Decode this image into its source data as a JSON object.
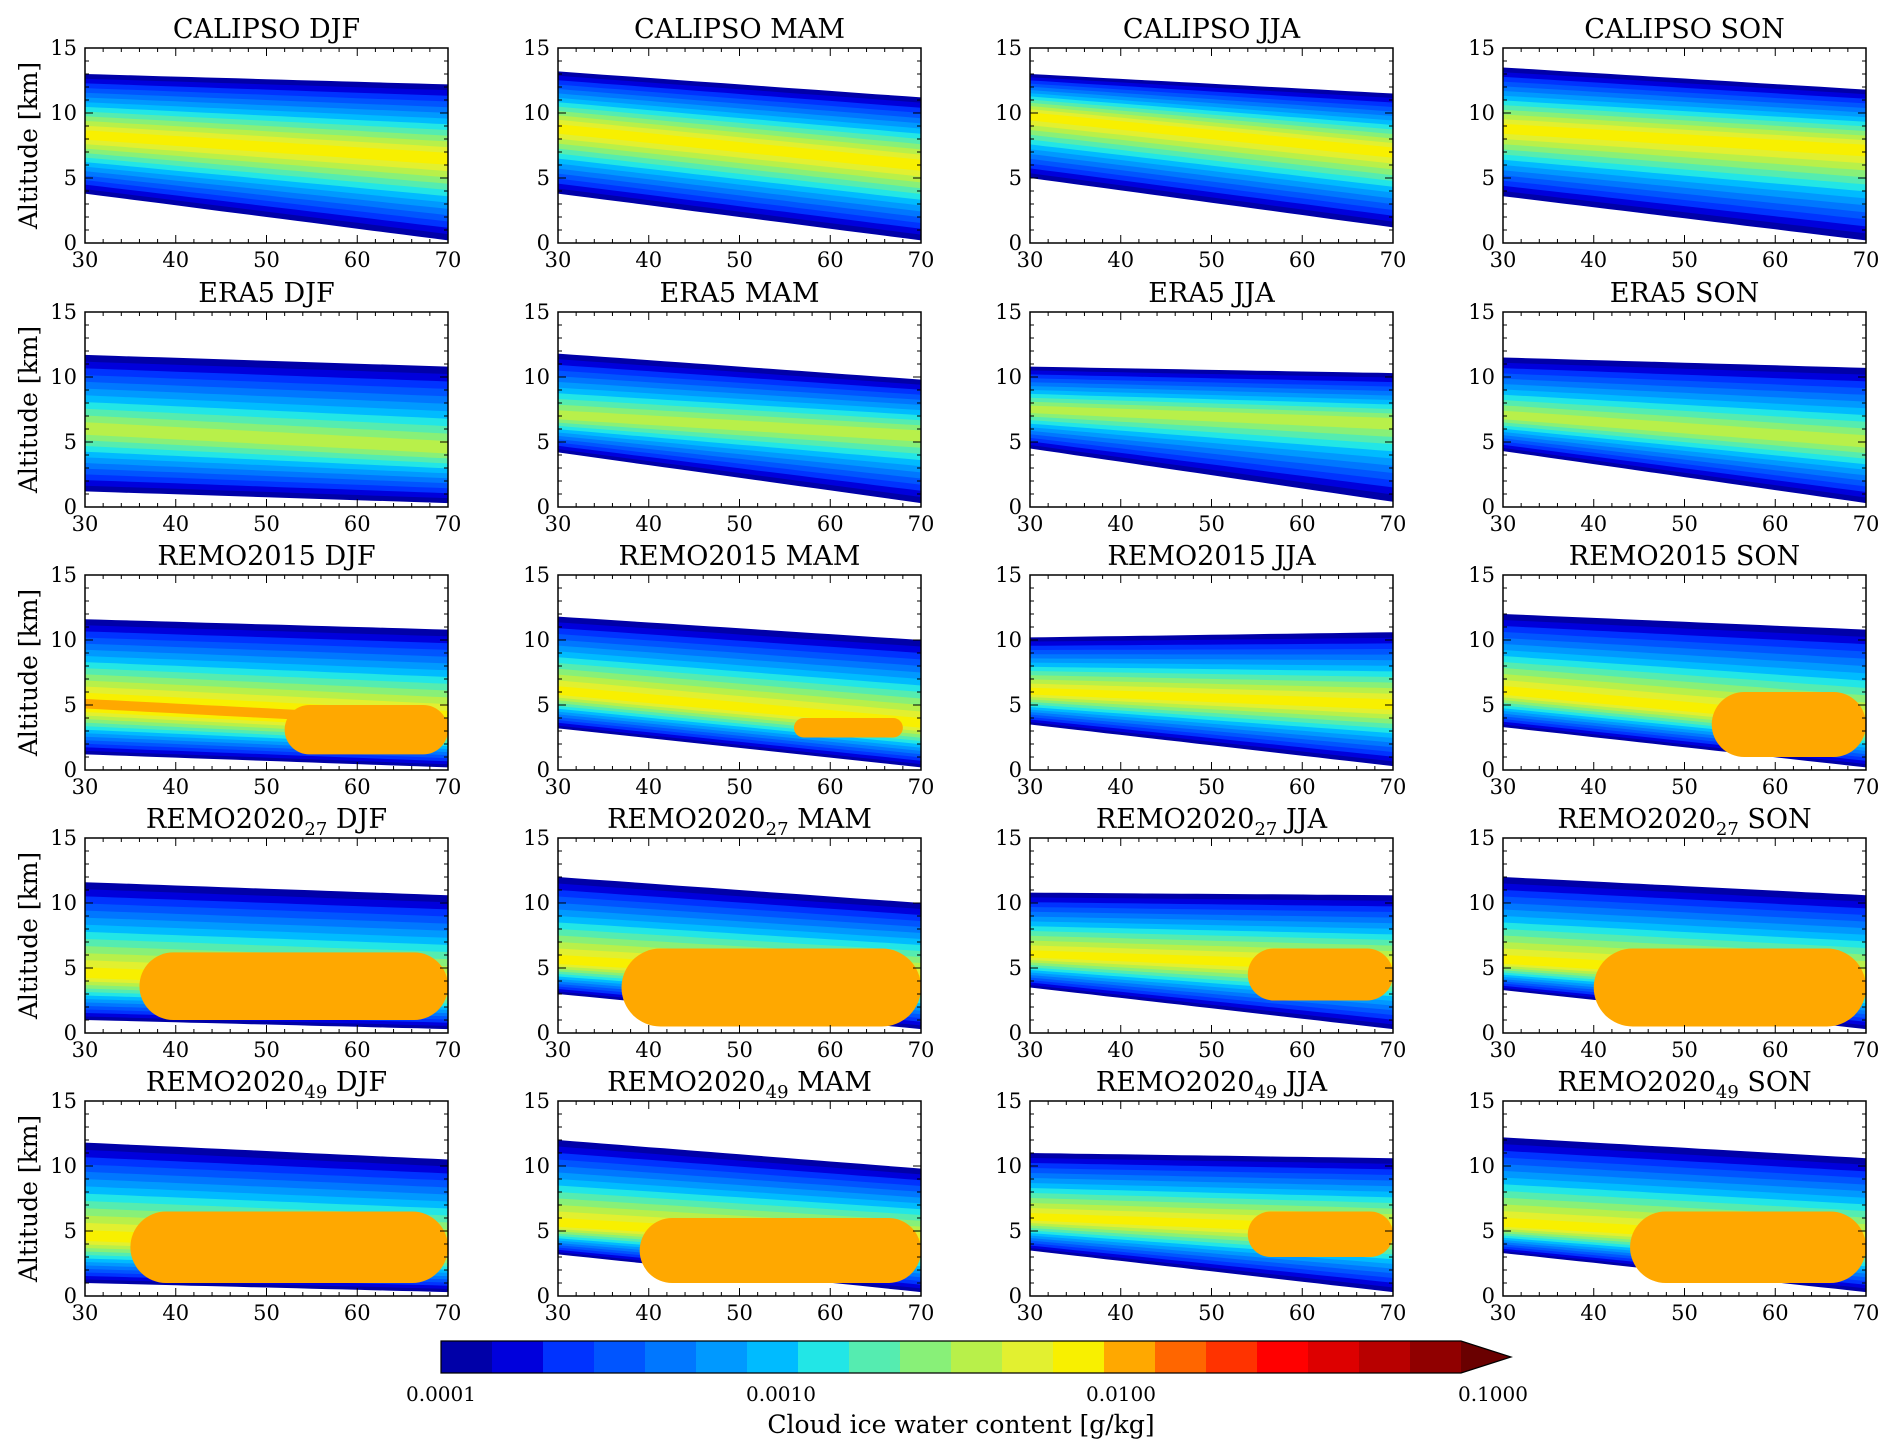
{
  "figure": {
    "ylabel": "Altitude [km]",
    "colorbar": {
      "label": "Cloud ice water content [g/kg]",
      "tick_labels": [
        "0.0001",
        "0.0010",
        "0.0100",
        "0.1000"
      ],
      "tick_values": [
        0.0001,
        0.001,
        0.01,
        0.1
      ],
      "scale": "log",
      "extend": "max",
      "colors": [
        "#0000a8",
        "#0000dc",
        "#0033ff",
        "#0055ff",
        "#0077ff",
        "#0099ff",
        "#00bbff",
        "#22e6e6",
        "#55ecb0",
        "#88f078",
        "#b8f04a",
        "#e2f030",
        "#f8f000",
        "#ffa800",
        "#ff6600",
        "#ff3300",
        "#ff0000",
        "#dd0000",
        "#b80000",
        "#900000",
        "#6a0000"
      ]
    }
  },
  "chart_data": [
    {
      "type": "heatmap",
      "title_main": "CALIPSO",
      "title_sub": "",
      "title_season": "DJF",
      "xlim": [
        30,
        70
      ],
      "ylim": [
        0,
        15
      ],
      "xticks": [
        30,
        40,
        50,
        60,
        70
      ],
      "yticks": [
        0,
        5,
        10,
        15
      ],
      "profile": {
        "top": [
          13.0,
          12.2
        ],
        "bottom": [
          3.8,
          0.2
        ],
        "core": [
          8.3,
          6.5
        ],
        "core_width": 2.2,
        "peak": "yellow",
        "spots": []
      }
    },
    {
      "type": "heatmap",
      "title_main": "CALIPSO",
      "title_sub": "",
      "title_season": "MAM",
      "xlim": [
        30,
        70
      ],
      "ylim": [
        0,
        15
      ],
      "xticks": [
        30,
        40,
        50,
        60,
        70
      ],
      "yticks": [
        0,
        5,
        10,
        15
      ],
      "profile": {
        "top": [
          13.2,
          11.2
        ],
        "bottom": [
          3.8,
          0.2
        ],
        "core": [
          8.8,
          6.0
        ],
        "core_width": 2.2,
        "peak": "yellow",
        "spots": []
      }
    },
    {
      "type": "heatmap",
      "title_main": "CALIPSO",
      "title_sub": "",
      "title_season": "JJA",
      "xlim": [
        30,
        70
      ],
      "ylim": [
        0,
        15
      ],
      "xticks": [
        30,
        40,
        50,
        60,
        70
      ],
      "yticks": [
        0,
        5,
        10,
        15
      ],
      "profile": {
        "top": [
          13.0,
          11.5
        ],
        "bottom": [
          5.0,
          1.2
        ],
        "core": [
          9.8,
          7.0
        ],
        "core_width": 2.0,
        "peak": "yellow",
        "spots": []
      }
    },
    {
      "type": "heatmap",
      "title_main": "CALIPSO",
      "title_sub": "",
      "title_season": "SON",
      "xlim": [
        30,
        70
      ],
      "ylim": [
        0,
        15
      ],
      "xticks": [
        30,
        40,
        50,
        60,
        70
      ],
      "yticks": [
        0,
        5,
        10,
        15
      ],
      "profile": {
        "top": [
          13.5,
          11.8
        ],
        "bottom": [
          3.6,
          0.2
        ],
        "core": [
          8.8,
          7.2
        ],
        "core_width": 2.3,
        "peak": "yellow",
        "spots": []
      }
    },
    {
      "type": "heatmap",
      "title_main": "ERA5",
      "title_sub": "",
      "title_season": "DJF",
      "xlim": [
        30,
        70
      ],
      "ylim": [
        0,
        15
      ],
      "xticks": [
        30,
        40,
        50,
        60,
        70
      ],
      "yticks": [
        0,
        5,
        10,
        15
      ],
      "profile": {
        "top": [
          11.7,
          10.8
        ],
        "bottom": [
          1.2,
          0.3
        ],
        "core": [
          6.0,
          4.5
        ],
        "core_width": 2.4,
        "peak": "green",
        "spots": []
      }
    },
    {
      "type": "heatmap",
      "title_main": "ERA5",
      "title_sub": "",
      "title_season": "MAM",
      "xlim": [
        30,
        70
      ],
      "ylim": [
        0,
        15
      ],
      "xticks": [
        30,
        40,
        50,
        60,
        70
      ],
      "yticks": [
        0,
        5,
        10,
        15
      ],
      "profile": {
        "top": [
          11.8,
          9.8
        ],
        "bottom": [
          4.2,
          0.3
        ],
        "core": [
          7.0,
          5.5
        ],
        "core_width": 2.2,
        "peak": "green",
        "spots": []
      }
    },
    {
      "type": "heatmap",
      "title_main": "ERA5",
      "title_sub": "",
      "title_season": "JJA",
      "xlim": [
        30,
        70
      ],
      "ylim": [
        0,
        15
      ],
      "xticks": [
        30,
        40,
        50,
        60,
        70
      ],
      "yticks": [
        0,
        5,
        10,
        15
      ],
      "profile": {
        "top": [
          10.8,
          10.3
        ],
        "bottom": [
          4.5,
          0.4
        ],
        "core": [
          7.5,
          6.5
        ],
        "core_width": 2.0,
        "peak": "green",
        "spots": []
      }
    },
    {
      "type": "heatmap",
      "title_main": "ERA5",
      "title_sub": "",
      "title_season": "SON",
      "xlim": [
        30,
        70
      ],
      "ylim": [
        0,
        15
      ],
      "xticks": [
        30,
        40,
        50,
        60,
        70
      ],
      "yticks": [
        0,
        5,
        10,
        15
      ],
      "profile": {
        "top": [
          11.5,
          10.7
        ],
        "bottom": [
          4.3,
          0.3
        ],
        "core": [
          7.0,
          5.0
        ],
        "core_width": 2.2,
        "peak": "green",
        "spots": []
      }
    },
    {
      "type": "heatmap",
      "title_main": "REMO2015",
      "title_sub": "",
      "title_season": "DJF",
      "xlim": [
        30,
        70
      ],
      "ylim": [
        0,
        15
      ],
      "xticks": [
        30,
        40,
        50,
        60,
        70
      ],
      "yticks": [
        0,
        5,
        10,
        15
      ],
      "profile": {
        "top": [
          11.6,
          10.8
        ],
        "bottom": [
          1.2,
          0.2
        ],
        "core": [
          5.0,
          3.5
        ],
        "core_width": 2.4,
        "peak": "orange",
        "spots": [
          [
            52,
            70,
            1.2,
            5.0
          ]
        ]
      }
    },
    {
      "type": "heatmap",
      "title_main": "REMO2015",
      "title_sub": "",
      "title_season": "MAM",
      "xlim": [
        30,
        70
      ],
      "ylim": [
        0,
        15
      ],
      "xticks": [
        30,
        40,
        50,
        60,
        70
      ],
      "yticks": [
        0,
        5,
        10,
        15
      ],
      "profile": {
        "top": [
          11.8,
          10.0
        ],
        "bottom": [
          3.2,
          0.2
        ],
        "core": [
          6.0,
          3.5
        ],
        "core_width": 2.4,
        "peak": "yellow",
        "spots": [
          [
            56,
            68,
            2.5,
            4.0
          ]
        ]
      }
    },
    {
      "type": "heatmap",
      "title_main": "REMO2015",
      "title_sub": "",
      "title_season": "JJA",
      "xlim": [
        30,
        70
      ],
      "ylim": [
        0,
        15
      ],
      "xticks": [
        30,
        40,
        50,
        60,
        70
      ],
      "yticks": [
        0,
        5,
        10,
        15
      ],
      "profile": {
        "top": [
          10.2,
          10.6
        ],
        "bottom": [
          3.5,
          0.3
        ],
        "core": [
          6.0,
          5.0
        ],
        "core_width": 2.3,
        "peak": "yellow",
        "spots": []
      }
    },
    {
      "type": "heatmap",
      "title_main": "REMO2015",
      "title_sub": "",
      "title_season": "SON",
      "xlim": [
        30,
        70
      ],
      "ylim": [
        0,
        15
      ],
      "xticks": [
        30,
        40,
        50,
        60,
        70
      ],
      "yticks": [
        0,
        5,
        10,
        15
      ],
      "profile": {
        "top": [
          12.0,
          10.8
        ],
        "bottom": [
          3.3,
          0.2
        ],
        "core": [
          6.0,
          3.5
        ],
        "core_width": 2.4,
        "peak": "yellow",
        "spots": [
          [
            53,
            70,
            1.0,
            6.0
          ]
        ]
      }
    },
    {
      "type": "heatmap",
      "title_main": "REMO2020",
      "title_sub": "27",
      "title_season": "DJF",
      "xlim": [
        30,
        70
      ],
      "ylim": [
        0,
        15
      ],
      "xticks": [
        30,
        40,
        50,
        60,
        70
      ],
      "yticks": [
        0,
        5,
        10,
        15
      ],
      "profile": {
        "top": [
          11.6,
          10.6
        ],
        "bottom": [
          1.0,
          0.3
        ],
        "core": [
          4.5,
          3.5
        ],
        "core_width": 2.4,
        "peak": "yellow",
        "spots": [
          [
            36,
            70,
            1.0,
            6.2
          ]
        ]
      }
    },
    {
      "type": "heatmap",
      "title_main": "REMO2020",
      "title_sub": "27",
      "title_season": "MAM",
      "xlim": [
        30,
        70
      ],
      "ylim": [
        0,
        15
      ],
      "xticks": [
        30,
        40,
        50,
        60,
        70
      ],
      "yticks": [
        0,
        5,
        10,
        15
      ],
      "profile": {
        "top": [
          12.0,
          10.0
        ],
        "bottom": [
          3.0,
          0.3
        ],
        "core": [
          5.5,
          4.0
        ],
        "core_width": 2.4,
        "peak": "yellow",
        "spots": [
          [
            37,
            70,
            0.5,
            6.5
          ]
        ]
      }
    },
    {
      "type": "heatmap",
      "title_main": "REMO2020",
      "title_sub": "27",
      "title_season": "JJA",
      "xlim": [
        30,
        70
      ],
      "ylim": [
        0,
        15
      ],
      "xticks": [
        30,
        40,
        50,
        60,
        70
      ],
      "yticks": [
        0,
        5,
        10,
        15
      ],
      "profile": {
        "top": [
          10.8,
          10.6
        ],
        "bottom": [
          3.5,
          0.3
        ],
        "core": [
          6.0,
          5.0
        ],
        "core_width": 2.3,
        "peak": "yellow",
        "spots": [
          [
            54,
            70,
            2.5,
            6.5
          ]
        ]
      }
    },
    {
      "type": "heatmap",
      "title_main": "REMO2020",
      "title_sub": "27",
      "title_season": "SON",
      "xlim": [
        30,
        70
      ],
      "ylim": [
        0,
        15
      ],
      "xticks": [
        30,
        40,
        50,
        60,
        70
      ],
      "yticks": [
        0,
        5,
        10,
        15
      ],
      "profile": {
        "top": [
          12.0,
          10.6
        ],
        "bottom": [
          3.3,
          0.3
        ],
        "core": [
          5.5,
          4.0
        ],
        "core_width": 2.4,
        "peak": "yellow",
        "spots": [
          [
            40,
            70,
            0.5,
            6.5
          ]
        ]
      }
    },
    {
      "type": "heatmap",
      "title_main": "REMO2020",
      "title_sub": "49",
      "title_season": "DJF",
      "xlim": [
        30,
        70
      ],
      "ylim": [
        0,
        15
      ],
      "xticks": [
        30,
        40,
        50,
        60,
        70
      ],
      "yticks": [
        0,
        5,
        10,
        15
      ],
      "profile": {
        "top": [
          11.8,
          10.5
        ],
        "bottom": [
          1.0,
          0.3
        ],
        "core": [
          4.5,
          3.5
        ],
        "core_width": 2.4,
        "peak": "yellow",
        "spots": [
          [
            35,
            70,
            1.0,
            6.5
          ]
        ]
      }
    },
    {
      "type": "heatmap",
      "title_main": "REMO2020",
      "title_sub": "49",
      "title_season": "MAM",
      "xlim": [
        30,
        70
      ],
      "ylim": [
        0,
        15
      ],
      "xticks": [
        30,
        40,
        50,
        60,
        70
      ],
      "yticks": [
        0,
        5,
        10,
        15
      ],
      "profile": {
        "top": [
          12.0,
          9.8
        ],
        "bottom": [
          3.2,
          0.3
        ],
        "core": [
          5.5,
          4.0
        ],
        "core_width": 2.4,
        "peak": "yellow",
        "spots": [
          [
            39,
            70,
            1.0,
            6.0
          ]
        ]
      }
    },
    {
      "type": "heatmap",
      "title_main": "REMO2020",
      "title_sub": "49",
      "title_season": "JJA",
      "xlim": [
        30,
        70
      ],
      "ylim": [
        0,
        15
      ],
      "xticks": [
        30,
        40,
        50,
        60,
        70
      ],
      "yticks": [
        0,
        5,
        10,
        15
      ],
      "profile": {
        "top": [
          11.0,
          10.6
        ],
        "bottom": [
          3.5,
          0.3
        ],
        "core": [
          6.0,
          5.0
        ],
        "core_width": 2.3,
        "peak": "yellow",
        "spots": [
          [
            54,
            70,
            3.0,
            6.5
          ]
        ]
      }
    },
    {
      "type": "heatmap",
      "title_main": "REMO2020",
      "title_sub": "49",
      "title_season": "SON",
      "xlim": [
        30,
        70
      ],
      "ylim": [
        0,
        15
      ],
      "xticks": [
        30,
        40,
        50,
        60,
        70
      ],
      "yticks": [
        0,
        5,
        10,
        15
      ],
      "profile": {
        "top": [
          12.2,
          10.6
        ],
        "bottom": [
          3.3,
          0.3
        ],
        "core": [
          5.5,
          4.0
        ],
        "core_width": 2.4,
        "peak": "yellow",
        "spots": [
          [
            44,
            70,
            1.0,
            6.5
          ]
        ]
      }
    }
  ]
}
